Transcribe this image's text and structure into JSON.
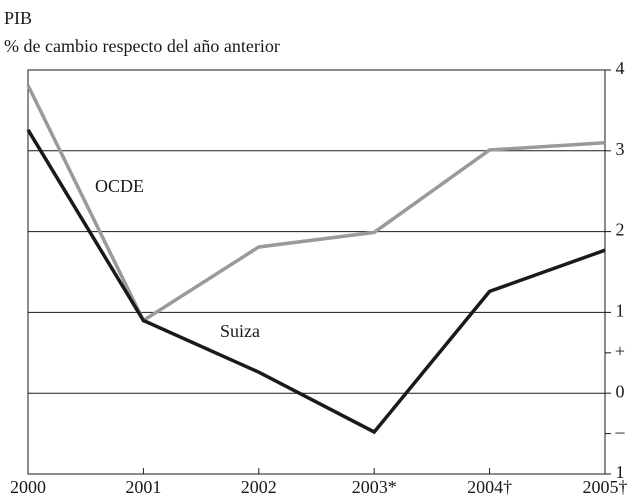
{
  "chart_data": {
    "type": "line",
    "title": "PIB",
    "subtitle": "% de cambio respecto del año anterior",
    "categories": [
      "2000",
      "2001",
      "2002",
      "2003*",
      "2004†",
      "2005†"
    ],
    "series": [
      {
        "name": "OCDE",
        "color": "#9a9a9a",
        "values": [
          3.81,
          0.9,
          1.81,
          1.99,
          3.01,
          3.1
        ]
      },
      {
        "name": "Suiza",
        "color": "#1a1a1a",
        "values": [
          3.26,
          0.9,
          0.26,
          -0.48,
          1.26,
          1.77
        ]
      }
    ],
    "ylim": [
      -1,
      4
    ],
    "yticks": [
      4,
      3,
      2,
      1,
      {
        "value": 0.5,
        "label": "+"
      },
      0,
      {
        "value": -0.5,
        "label": "–"
      },
      {
        "value": -1,
        "label": "1"
      }
    ],
    "grid": true
  }
}
